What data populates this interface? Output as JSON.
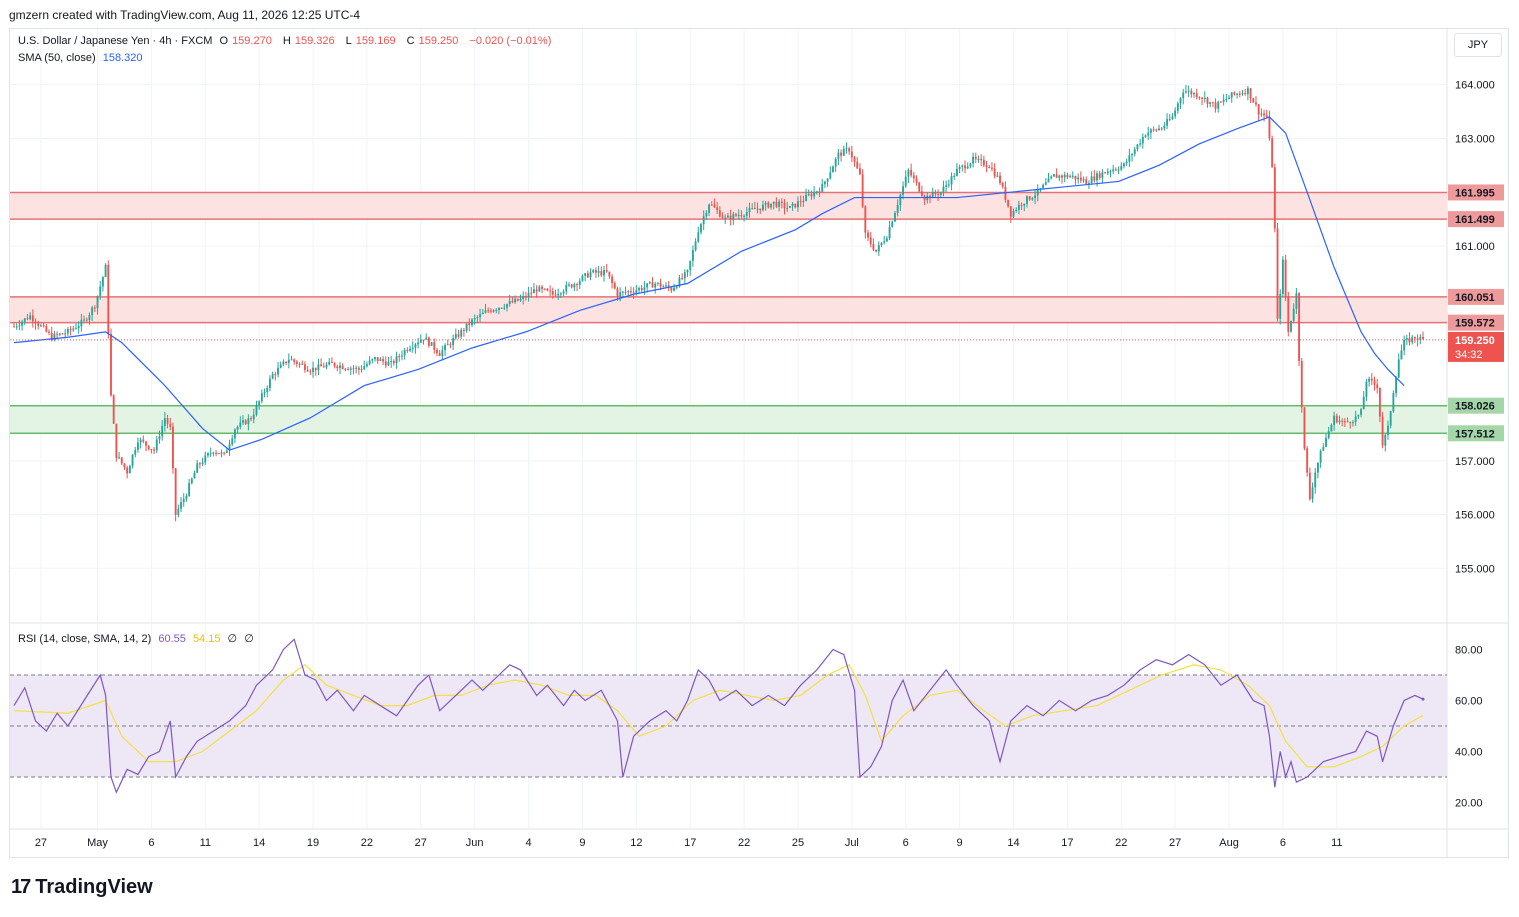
{
  "credit": "gmzern created with TradingView.com, Aug 11, 2026 12:25 UTC-4",
  "legend": {
    "symbol": "U.S. Dollar / Japanese Yen · 4h · FXCM",
    "open_label": "O",
    "open": "159.270",
    "high_label": "H",
    "high": "159.326",
    "low_label": "L",
    "low": "159.169",
    "close_label": "C",
    "close": "159.250",
    "change": "−0.020 (−0.01%)",
    "sma_label": "SMA (50, close)",
    "sma_value": "158.320",
    "rsi_label": "RSI (14, close, SMA, 14, 2)",
    "rsi_value": "60.55",
    "rsi_ma_value": "54.15",
    "rsi_extra1": "∅",
    "rsi_extra2": "∅"
  },
  "currency": "JPY",
  "logo_text": "TradingView",
  "colors": {
    "up": "#26a69a",
    "down": "#ef5350",
    "sma": "#2962ff",
    "rsi": "#7e57c2",
    "rsi_ma": "#f5e042",
    "resistance_fill": "#fde2e2",
    "resistance_line": "#e57373",
    "support_fill": "#e3f4e5",
    "support_line": "#66bb6a",
    "rsi_band": "#ede7f6"
  },
  "chart_data": {
    "type": "candlestick",
    "timeframe": "4h",
    "price_axis": {
      "ylim": [
        154.0,
        165.0
      ],
      "ticks": [
        155.0,
        156.0,
        157.0,
        161.0,
        163.0,
        164.0
      ],
      "tick_labels": [
        "155.000",
        "156.000",
        "157.000",
        "161.000",
        "163.000",
        "164.000"
      ]
    },
    "x_tick_labels": [
      "27",
      "May",
      "6",
      "11",
      "14",
      "19",
      "22",
      "27",
      "Jun",
      "4",
      "9",
      "12",
      "17",
      "22",
      "25",
      "Jul",
      "6",
      "9",
      "14",
      "17",
      "22",
      "27",
      "Aug",
      "6",
      "11"
    ],
    "x_tick_index": [
      10,
      31,
      51,
      71,
      91,
      111,
      131,
      151,
      171,
      191,
      211,
      231,
      251,
      271,
      291,
      311,
      331,
      351,
      371,
      391,
      411,
      431,
      451,
      471,
      491
    ],
    "zones": [
      {
        "kind": "resistance",
        "top": 161.995,
        "bottom": 161.499,
        "labels": [
          "161.995",
          "161.499"
        ]
      },
      {
        "kind": "resistance",
        "top": 160.051,
        "bottom": 159.572,
        "labels": [
          "160.051",
          "159.572"
        ]
      },
      {
        "kind": "support",
        "top": 158.026,
        "bottom": 157.512,
        "labels": [
          "158.026",
          "157.512"
        ]
      }
    ],
    "last_price": {
      "value": 159.25,
      "label": "159.250",
      "countdown": "34:32"
    },
    "price_path": [
      [
        0,
        159.5
      ],
      [
        6,
        159.7
      ],
      [
        14,
        159.3
      ],
      [
        20,
        159.4
      ],
      [
        26,
        159.6
      ],
      [
        30,
        159.9
      ],
      [
        34,
        160.6
      ],
      [
        36,
        158.2
      ],
      [
        38,
        157.1
      ],
      [
        42,
        156.8
      ],
      [
        46,
        157.4
      ],
      [
        52,
        157.2
      ],
      [
        56,
        157.8
      ],
      [
        58,
        157.6
      ],
      [
        60,
        156.0
      ],
      [
        64,
        156.4
      ],
      [
        68,
        156.9
      ],
      [
        74,
        157.2
      ],
      [
        78,
        157.1
      ],
      [
        82,
        157.6
      ],
      [
        88,
        157.8
      ],
      [
        92,
        158.2
      ],
      [
        96,
        158.6
      ],
      [
        102,
        158.9
      ],
      [
        110,
        158.7
      ],
      [
        118,
        158.8
      ],
      [
        128,
        158.7
      ],
      [
        134,
        158.9
      ],
      [
        140,
        158.8
      ],
      [
        146,
        159.1
      ],
      [
        152,
        159.3
      ],
      [
        158,
        159.0
      ],
      [
        164,
        159.3
      ],
      [
        170,
        159.6
      ],
      [
        176,
        159.8
      ],
      [
        182,
        159.9
      ],
      [
        188,
        160.0
      ],
      [
        194,
        160.2
      ],
      [
        200,
        160.1
      ],
      [
        208,
        160.3
      ],
      [
        214,
        160.5
      ],
      [
        220,
        160.5
      ],
      [
        224,
        160.1
      ],
      [
        232,
        160.2
      ],
      [
        238,
        160.3
      ],
      [
        244,
        160.2
      ],
      [
        250,
        160.5
      ],
      [
        254,
        161.3
      ],
      [
        258,
        161.8
      ],
      [
        264,
        161.5
      ],
      [
        270,
        161.6
      ],
      [
        276,
        161.7
      ],
      [
        282,
        161.8
      ],
      [
        288,
        161.7
      ],
      [
        294,
        161.9
      ],
      [
        300,
        162.1
      ],
      [
        306,
        162.7
      ],
      [
        310,
        162.8
      ],
      [
        314,
        162.3
      ],
      [
        316,
        161.2
      ],
      [
        320,
        160.9
      ],
      [
        324,
        161.2
      ],
      [
        328,
        161.8
      ],
      [
        332,
        162.4
      ],
      [
        338,
        161.9
      ],
      [
        344,
        162.0
      ],
      [
        350,
        162.4
      ],
      [
        356,
        162.6
      ],
      [
        362,
        162.5
      ],
      [
        366,
        162.2
      ],
      [
        370,
        161.6
      ],
      [
        374,
        161.8
      ],
      [
        380,
        162.0
      ],
      [
        386,
        162.3
      ],
      [
        392,
        162.3
      ],
      [
        398,
        162.2
      ],
      [
        406,
        162.4
      ],
      [
        412,
        162.5
      ],
      [
        416,
        162.8
      ],
      [
        420,
        163.1
      ],
      [
        426,
        163.2
      ],
      [
        430,
        163.4
      ],
      [
        434,
        163.9
      ],
      [
        440,
        163.8
      ],
      [
        446,
        163.6
      ],
      [
        452,
        163.8
      ],
      [
        458,
        163.9
      ],
      [
        462,
        163.5
      ],
      [
        465,
        163.4
      ],
      [
        467,
        162.5
      ],
      [
        468,
        161.3
      ],
      [
        469,
        159.6
      ],
      [
        471,
        160.7
      ],
      [
        473,
        159.4
      ],
      [
        476,
        160.1
      ],
      [
        477,
        158.9
      ],
      [
        479,
        157.2
      ],
      [
        481,
        156.3
      ],
      [
        483,
        156.8
      ],
      [
        486,
        157.3
      ],
      [
        490,
        157.8
      ],
      [
        494,
        157.7
      ],
      [
        498,
        157.8
      ],
      [
        500,
        157.9
      ],
      [
        502,
        158.5
      ],
      [
        506,
        158.4
      ],
      [
        508,
        157.3
      ],
      [
        510,
        157.6
      ],
      [
        512,
        158.3
      ],
      [
        514,
        158.9
      ],
      [
        516,
        159.2
      ],
      [
        520,
        159.3
      ],
      [
        523,
        159.25
      ]
    ],
    "sma_path": [
      [
        0,
        159.2
      ],
      [
        20,
        159.3
      ],
      [
        34,
        159.4
      ],
      [
        40,
        159.2
      ],
      [
        56,
        158.4
      ],
      [
        70,
        157.6
      ],
      [
        80,
        157.2
      ],
      [
        92,
        157.4
      ],
      [
        110,
        157.8
      ],
      [
        130,
        158.4
      ],
      [
        150,
        158.7
      ],
      [
        170,
        159.1
      ],
      [
        190,
        159.4
      ],
      [
        210,
        159.8
      ],
      [
        230,
        160.1
      ],
      [
        250,
        160.3
      ],
      [
        270,
        160.9
      ],
      [
        290,
        161.3
      ],
      [
        300,
        161.6
      ],
      [
        312,
        161.9
      ],
      [
        330,
        161.9
      ],
      [
        350,
        161.9
      ],
      [
        370,
        162.0
      ],
      [
        390,
        162.1
      ],
      [
        410,
        162.2
      ],
      [
        425,
        162.5
      ],
      [
        440,
        162.9
      ],
      [
        455,
        163.2
      ],
      [
        466,
        163.4
      ],
      [
        472,
        163.1
      ],
      [
        480,
        162.0
      ],
      [
        490,
        160.6
      ],
      [
        500,
        159.4
      ],
      [
        505,
        159.0
      ],
      [
        510,
        158.7
      ],
      [
        516,
        158.4
      ]
    ],
    "rsi": {
      "ylim": [
        10,
        90
      ],
      "tick_labels": [
        "20.00",
        "40.00",
        "60.00",
        "80.00"
      ],
      "ticks": [
        20,
        40,
        60,
        80
      ],
      "upper_band": 70,
      "middle": 50,
      "lower_band": 30,
      "rsi_path": [
        [
          0,
          58
        ],
        [
          4,
          65
        ],
        [
          8,
          52
        ],
        [
          12,
          48
        ],
        [
          16,
          55
        ],
        [
          20,
          50
        ],
        [
          26,
          60
        ],
        [
          32,
          70
        ],
        [
          34,
          62
        ],
        [
          36,
          30
        ],
        [
          38,
          24
        ],
        [
          42,
          33
        ],
        [
          46,
          31
        ],
        [
          50,
          38
        ],
        [
          54,
          40
        ],
        [
          58,
          52
        ],
        [
          60,
          30
        ],
        [
          64,
          38
        ],
        [
          68,
          44
        ],
        [
          74,
          48
        ],
        [
          80,
          52
        ],
        [
          86,
          58
        ],
        [
          90,
          66
        ],
        [
          96,
          72
        ],
        [
          100,
          80
        ],
        [
          104,
          84
        ],
        [
          108,
          70
        ],
        [
          112,
          68
        ],
        [
          116,
          60
        ],
        [
          120,
          64
        ],
        [
          126,
          56
        ],
        [
          130,
          62
        ],
        [
          136,
          58
        ],
        [
          142,
          54
        ],
        [
          146,
          60
        ],
        [
          150,
          66
        ],
        [
          154,
          70
        ],
        [
          158,
          56
        ],
        [
          164,
          62
        ],
        [
          170,
          68
        ],
        [
          174,
          64
        ],
        [
          180,
          70
        ],
        [
          184,
          74
        ],
        [
          188,
          72
        ],
        [
          194,
          62
        ],
        [
          198,
          66
        ],
        [
          204,
          58
        ],
        [
          208,
          64
        ],
        [
          212,
          60
        ],
        [
          218,
          64
        ],
        [
          224,
          52
        ],
        [
          226,
          30
        ],
        [
          230,
          46
        ],
        [
          236,
          52
        ],
        [
          242,
          56
        ],
        [
          246,
          52
        ],
        [
          250,
          60
        ],
        [
          254,
          72
        ],
        [
          258,
          68
        ],
        [
          262,
          60
        ],
        [
          268,
          64
        ],
        [
          274,
          58
        ],
        [
          280,
          62
        ],
        [
          286,
          58
        ],
        [
          292,
          66
        ],
        [
          298,
          72
        ],
        [
          304,
          80
        ],
        [
          308,
          78
        ],
        [
          312,
          64
        ],
        [
          314,
          30
        ],
        [
          318,
          34
        ],
        [
          322,
          42
        ],
        [
          326,
          60
        ],
        [
          330,
          68
        ],
        [
          334,
          56
        ],
        [
          340,
          64
        ],
        [
          346,
          72
        ],
        [
          350,
          66
        ],
        [
          356,
          58
        ],
        [
          362,
          52
        ],
        [
          366,
          36
        ],
        [
          370,
          52
        ],
        [
          376,
          58
        ],
        [
          382,
          54
        ],
        [
          388,
          60
        ],
        [
          394,
          56
        ],
        [
          400,
          60
        ],
        [
          406,
          62
        ],
        [
          412,
          66
        ],
        [
          418,
          72
        ],
        [
          424,
          76
        ],
        [
          430,
          74
        ],
        [
          436,
          78
        ],
        [
          442,
          74
        ],
        [
          448,
          66
        ],
        [
          454,
          70
        ],
        [
          460,
          60
        ],
        [
          464,
          58
        ],
        [
          466,
          46
        ],
        [
          468,
          26
        ],
        [
          470,
          40
        ],
        [
          472,
          30
        ],
        [
          474,
          36
        ],
        [
          476,
          28
        ],
        [
          480,
          30
        ],
        [
          486,
          36
        ],
        [
          492,
          38
        ],
        [
          498,
          40
        ],
        [
          502,
          48
        ],
        [
          506,
          46
        ],
        [
          508,
          36
        ],
        [
          512,
          50
        ],
        [
          516,
          60
        ],
        [
          520,
          62
        ],
        [
          523,
          60.55
        ]
      ],
      "rsi_ma_path": [
        [
          0,
          56
        ],
        [
          20,
          55
        ],
        [
          34,
          60
        ],
        [
          40,
          46
        ],
        [
          50,
          36
        ],
        [
          60,
          36
        ],
        [
          70,
          40
        ],
        [
          80,
          48
        ],
        [
          90,
          56
        ],
        [
          100,
          68
        ],
        [
          108,
          74
        ],
        [
          116,
          66
        ],
        [
          126,
          62
        ],
        [
          136,
          58
        ],
        [
          146,
          58
        ],
        [
          156,
          62
        ],
        [
          166,
          62
        ],
        [
          176,
          66
        ],
        [
          186,
          68
        ],
        [
          196,
          66
        ],
        [
          206,
          62
        ],
        [
          216,
          62
        ],
        [
          224,
          56
        ],
        [
          232,
          46
        ],
        [
          242,
          50
        ],
        [
          252,
          60
        ],
        [
          262,
          64
        ],
        [
          272,
          62
        ],
        [
          282,
          60
        ],
        [
          292,
          62
        ],
        [
          302,
          70
        ],
        [
          310,
          74
        ],
        [
          316,
          62
        ],
        [
          322,
          44
        ],
        [
          330,
          54
        ],
        [
          340,
          62
        ],
        [
          350,
          64
        ],
        [
          360,
          56
        ],
        [
          368,
          50
        ],
        [
          378,
          54
        ],
        [
          390,
          56
        ],
        [
          402,
          58
        ],
        [
          414,
          64
        ],
        [
          426,
          70
        ],
        [
          438,
          74
        ],
        [
          448,
          72
        ],
        [
          458,
          66
        ],
        [
          466,
          58
        ],
        [
          472,
          44
        ],
        [
          480,
          34
        ],
        [
          490,
          34
        ],
        [
          500,
          38
        ],
        [
          508,
          42
        ],
        [
          516,
          50
        ],
        [
          523,
          54.15
        ]
      ]
    }
  }
}
